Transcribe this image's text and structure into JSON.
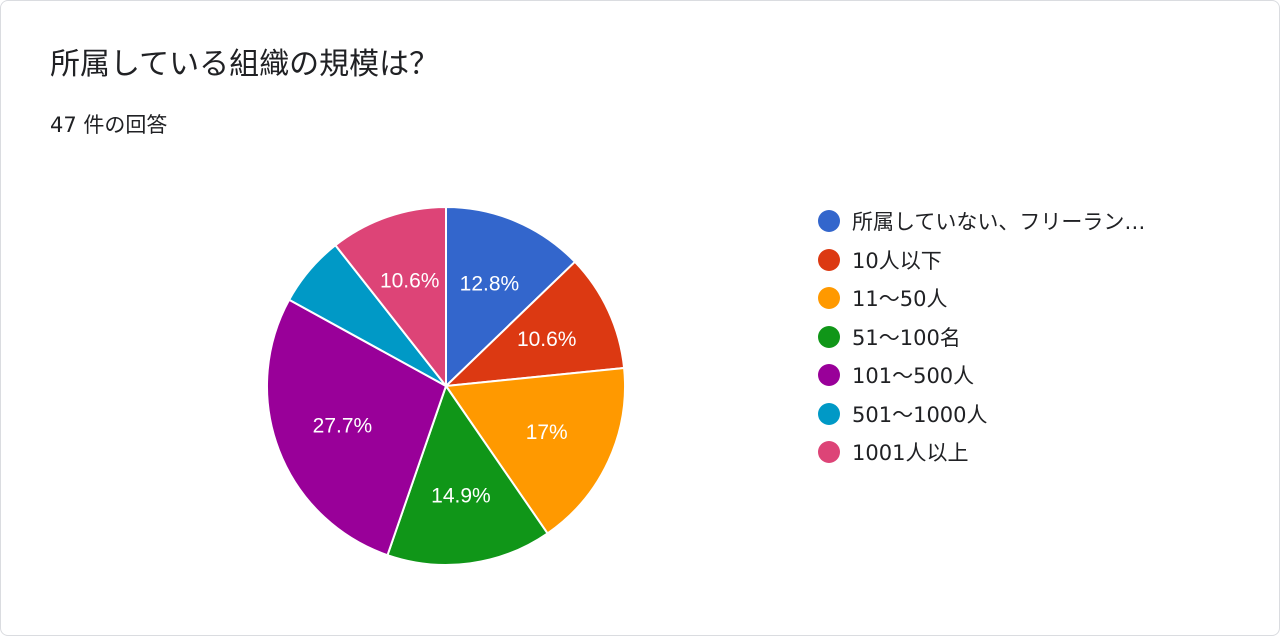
{
  "card": {
    "title": "所属している組織の規模は？",
    "response_count": "47 件の回答"
  },
  "chart_data": {
    "type": "pie",
    "title": "所属している組織の規模は？",
    "start_angle_deg": 90,
    "direction": "clockwise",
    "legend_placement": "right",
    "slices": [
      {
        "name": "所属していない、フリーラン…",
        "value": 12.8,
        "label": "12.8%",
        "color": "#3366cc"
      },
      {
        "name": "10人以下",
        "value": 10.6,
        "label": "10.6%",
        "color": "#dc3912"
      },
      {
        "name": "11〜50人",
        "value": 17.0,
        "label": "17%",
        "color": "#ff9900"
      },
      {
        "name": "51〜100名",
        "value": 14.9,
        "label": "14.9%",
        "color": "#109618"
      },
      {
        "name": "101〜500人",
        "value": 27.7,
        "label": "27.7%",
        "color": "#990099"
      },
      {
        "name": "501〜1000人",
        "value": 6.4,
        "label": "",
        "color": "#0099c6"
      },
      {
        "name": "1001人以上",
        "value": 10.6,
        "label": "10.6%",
        "color": "#dd4477"
      }
    ]
  }
}
